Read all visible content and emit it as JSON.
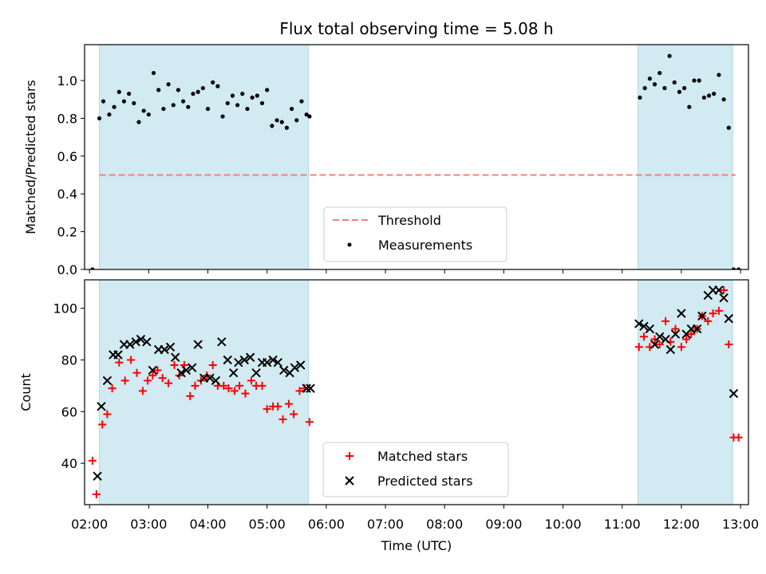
{
  "figure": {
    "title": "Flux total observing time = 5.08 h",
    "xlabel": "Time (UTC)"
  },
  "chart_data": [
    {
      "type": "scatter",
      "ylabel": "Matched/Predicted stars",
      "xlim": [
        "01:55",
        "13:08"
      ],
      "ylim": [
        0,
        1.19
      ],
      "yticks": [
        "0.0",
        "0.2",
        "0.4",
        "0.6",
        "0.8",
        "1.0"
      ],
      "threshold": {
        "name": "Threshold",
        "value": 0.5,
        "x_range": [
          "02:10",
          "12:55"
        ],
        "color": "#f08080"
      },
      "shaded_intervals": [
        [
          "02:10",
          "05:42"
        ],
        [
          "11:16",
          "12:52"
        ]
      ],
      "shade_color": "#add8e6",
      "legend": {
        "placement": "lower-center",
        "entries": [
          "Threshold",
          "Measurements"
        ]
      },
      "series": [
        {
          "name": "Measurements",
          "color": "#000000",
          "marker": "dot",
          "x": [
            "02:03",
            "02:10",
            "02:14",
            "02:20",
            "02:25",
            "02:30",
            "02:35",
            "02:40",
            "02:45",
            "02:50",
            "02:55",
            "03:00",
            "03:05",
            "03:10",
            "03:15",
            "03:20",
            "03:25",
            "03:30",
            "03:35",
            "03:40",
            "03:45",
            "03:50",
            "03:55",
            "04:00",
            "04:05",
            "04:10",
            "04:15",
            "04:20",
            "04:25",
            "04:30",
            "04:35",
            "04:40",
            "04:45",
            "04:50",
            "04:55",
            "05:00",
            "05:05",
            "05:10",
            "05:15",
            "05:20",
            "05:25",
            "05:30",
            "05:35",
            "05:40",
            "05:43",
            "11:18",
            "11:23",
            "11:28",
            "11:33",
            "11:38",
            "11:43",
            "11:48",
            "11:53",
            "11:58",
            "12:03",
            "12:08",
            "12:13",
            "12:18",
            "12:23",
            "12:28",
            "12:33",
            "12:38",
            "12:43",
            "12:48",
            "12:53",
            "12:58"
          ],
          "values": [
            0.0,
            0.8,
            0.89,
            0.82,
            0.86,
            0.94,
            0.89,
            0.93,
            0.88,
            0.78,
            0.84,
            0.82,
            1.04,
            0.95,
            0.85,
            0.98,
            0.87,
            0.95,
            0.89,
            0.86,
            0.93,
            0.94,
            0.96,
            0.85,
            0.99,
            0.97,
            0.81,
            0.88,
            0.92,
            0.87,
            0.93,
            0.85,
            0.91,
            0.92,
            0.88,
            0.95,
            0.76,
            0.79,
            0.78,
            0.75,
            0.85,
            0.79,
            0.89,
            0.82,
            0.81,
            0.91,
            0.96,
            1.01,
            0.98,
            1.04,
            0.96,
            1.13,
            0.99,
            0.94,
            0.96,
            0.86,
            1.0,
            1.0,
            0.91,
            0.92,
            0.93,
            1.03,
            0.9,
            0.75,
            0.0,
            0.0
          ]
        }
      ]
    },
    {
      "type": "scatter",
      "ylabel": "Count",
      "xlim": [
        "01:55",
        "13:08"
      ],
      "ylim": [
        24,
        111
      ],
      "yticks": [
        "40",
        "60",
        "80",
        "100"
      ],
      "xticks": [
        "02:00",
        "03:00",
        "04:00",
        "05:00",
        "06:00",
        "07:00",
        "08:00",
        "09:00",
        "10:00",
        "11:00",
        "12:00",
        "13:00"
      ],
      "shaded_intervals": [
        [
          "02:10",
          "05:42"
        ],
        [
          "11:16",
          "12:52"
        ]
      ],
      "legend": {
        "placement": "lower-center",
        "entries": [
          "Matched stars",
          "Predicted stars"
        ]
      },
      "series": [
        {
          "name": "Matched stars",
          "color": "#ff0000",
          "marker": "plus",
          "x": [
            "02:03",
            "02:07",
            "02:13",
            "02:18",
            "02:23",
            "02:30",
            "02:36",
            "02:42",
            "02:48",
            "02:54",
            "02:59",
            "03:04",
            "03:09",
            "03:14",
            "03:20",
            "03:26",
            "03:31",
            "03:36",
            "03:42",
            "03:47",
            "03:53",
            "03:59",
            "04:05",
            "04:10",
            "04:16",
            "04:21",
            "04:27",
            "04:32",
            "04:38",
            "04:44",
            "04:49",
            "04:55",
            "05:00",
            "05:06",
            "05:11",
            "05:16",
            "05:22",
            "05:27",
            "05:33",
            "05:38",
            "05:43",
            "11:17",
            "11:22",
            "11:28",
            "11:33",
            "11:38",
            "11:44",
            "11:49",
            "11:54",
            "12:00",
            "12:05",
            "12:10",
            "12:16",
            "12:21",
            "12:27",
            "12:32",
            "12:38",
            "12:43",
            "12:48",
            "12:53",
            "12:58"
          ],
          "values": [
            41,
            28,
            55,
            59,
            69,
            79,
            72,
            80,
            75,
            68,
            72,
            74,
            76,
            73,
            71,
            78,
            74,
            78,
            66,
            70,
            72,
            74,
            78,
            70,
            70,
            69,
            68,
            70,
            67,
            72,
            70,
            70,
            61,
            62,
            62,
            57,
            63,
            59,
            68,
            69,
            56,
            85,
            89,
            85,
            88,
            86,
            95,
            87,
            92,
            85,
            88,
            90,
            92,
            97,
            95,
            98,
            99,
            107,
            86,
            50,
            50
          ]
        },
        {
          "name": "Predicted stars",
          "color": "#000000",
          "marker": "x",
          "x": [
            "02:08",
            "02:12",
            "02:18",
            "02:24",
            "02:29",
            "02:35",
            "02:41",
            "02:47",
            "02:52",
            "02:58",
            "03:04",
            "03:10",
            "03:16",
            "03:22",
            "03:27",
            "03:33",
            "03:38",
            "03:44",
            "03:50",
            "03:56",
            "04:02",
            "04:08",
            "04:14",
            "04:20",
            "04:26",
            "04:31",
            "04:37",
            "04:43",
            "04:49",
            "04:55",
            "05:00",
            "05:06",
            "05:11",
            "05:17",
            "05:23",
            "05:28",
            "05:34",
            "05:40",
            "05:44",
            "11:17",
            "11:22",
            "11:28",
            "11:33",
            "11:38",
            "11:44",
            "11:49",
            "11:54",
            "12:00",
            "12:05",
            "12:10",
            "12:16",
            "12:21",
            "12:27",
            "12:32",
            "12:38",
            "12:43",
            "12:48",
            "12:53"
          ],
          "values": [
            35,
            62,
            72,
            82,
            82,
            86,
            86,
            87,
            88,
            87,
            76,
            84,
            84,
            85,
            81,
            75,
            76,
            77,
            86,
            73,
            73,
            72,
            87,
            80,
            75,
            79,
            80,
            81,
            75,
            79,
            79,
            80,
            79,
            76,
            75,
            77,
            78,
            69,
            69,
            94,
            93,
            92,
            86,
            89,
            88,
            84,
            90,
            98,
            90,
            92,
            92,
            97,
            105,
            107,
            107,
            104,
            96,
            67
          ]
        }
      ]
    }
  ]
}
